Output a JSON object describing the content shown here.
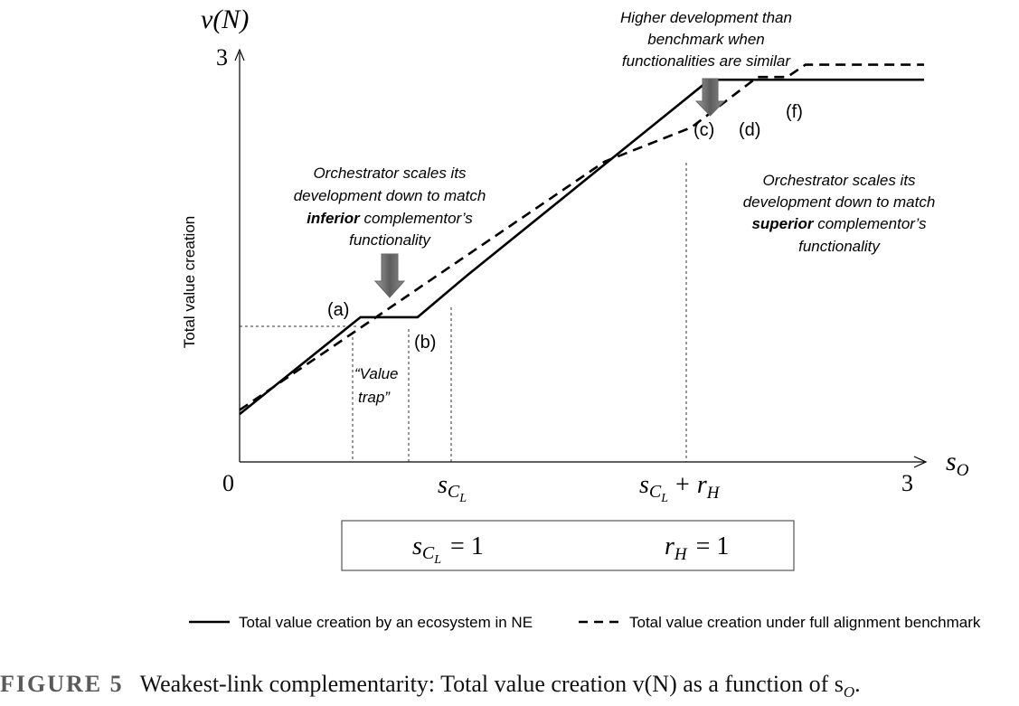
{
  "chart_data": {
    "type": "line",
    "y_axis_symbol": "v(N)",
    "ylabel": "Total value creation",
    "x_axis_symbol": "s",
    "x_axis_symbol_sub": "O",
    "xlim": [
      0,
      3
    ],
    "ylim": [
      0,
      3
    ],
    "x_tick_labels": {
      "origin": "0",
      "max": "3",
      "sCL_main": "s",
      "sCL_sub": "C",
      "sCL_subsub": "L",
      "sCLrH_plus": "+",
      "sCLrH_r": "r",
      "sCLrH_r_sub": "H"
    },
    "y_tick_labels": {
      "max": "3"
    },
    "params_box": {
      "sCL_rhs": "= 1",
      "rH_rhs": "= 1"
    },
    "series": [
      {
        "name": "Total value creation by an ecosystem in NE",
        "style": "solid",
        "color": "#000000",
        "points": [
          [
            0,
            0.35
          ],
          [
            0.53,
            1.06
          ],
          [
            0.78,
            1.06
          ],
          [
            1.0,
            1.37
          ],
          [
            2.06,
            2.8
          ],
          [
            3.0,
            2.8
          ]
        ]
      },
      {
        "name": "Total value creation under full alignment benchmark",
        "style": "dashed",
        "color": "#000000",
        "points": [
          [
            0,
            0.38
          ],
          [
            1.6,
            2.2
          ],
          [
            1.98,
            2.45
          ],
          [
            2.27,
            2.82
          ],
          [
            2.4,
            2.82
          ],
          [
            2.48,
            2.91
          ],
          [
            3.0,
            2.91
          ]
        ]
      }
    ],
    "point_labels": [
      "(a)",
      "(b)",
      "(c)",
      "(d)",
      "(f)"
    ],
    "annotations": {
      "left": [
        "Orchestrator scales its",
        "development down to match",
        "complementor’s",
        "functionality"
      ],
      "left_bold_word": "inferior",
      "right": [
        "Orchestrator scales its",
        "development down to match",
        "complementor’s",
        "functionality"
      ],
      "right_bold_word": "superior",
      "top": [
        "Higher development than",
        "benchmark when",
        "functionalities are similar"
      ],
      "value_trap": [
        "“Value",
        "trap”"
      ]
    },
    "legend": {
      "placement": "bottom",
      "solid": "Total value creation by an ecosystem in NE",
      "dashed": "Total value creation under full alignment benchmark"
    },
    "grid": false
  },
  "caption": {
    "label": "FIGURE 5",
    "text": "Weakest-link complementarity: Total value creation v(N) as a function of s",
    "sub": "O",
    "end": "."
  }
}
